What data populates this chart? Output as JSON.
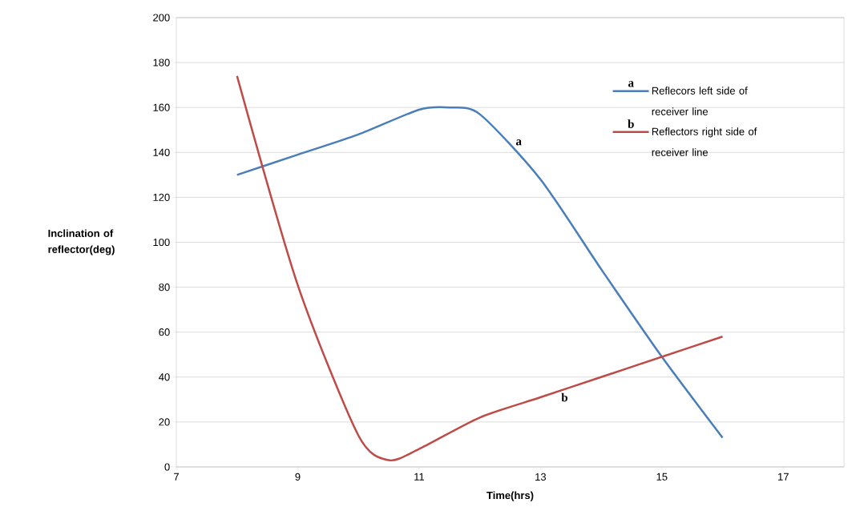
{
  "chart_data": {
    "type": "line",
    "xlabel": "Time(hrs)",
    "ylabel": "Inclination of reflector(deg)",
    "xlim": [
      7,
      18
    ],
    "xticks": [
      7,
      9,
      11,
      13,
      15,
      17
    ],
    "ylim": [
      0,
      200
    ],
    "yticks": [
      0,
      20,
      40,
      60,
      80,
      100,
      120,
      140,
      160,
      180,
      200
    ],
    "grid": "y",
    "legend": "top right",
    "series": [
      {
        "name": "Reflecors left side of receiver line",
        "color": "#4a7ebb",
        "x": [
          8,
          9,
          10,
          11,
          11.5,
          12,
          13,
          14,
          15,
          16
        ],
        "values": [
          130,
          139,
          148,
          159,
          160,
          157,
          128,
          88,
          49,
          13
        ]
      },
      {
        "name": "Reflectors right side of receiver line",
        "color": "#be4b48",
        "x": [
          8,
          9,
          10,
          10.5,
          11,
          12,
          13,
          14,
          15,
          16
        ],
        "values": [
          174,
          81,
          14,
          3,
          8,
          22,
          31,
          40,
          49,
          58
        ]
      }
    ],
    "annotations": [
      "a",
      "b",
      {
        "text": "a",
        "x": 12.55,
        "y": 142
      },
      {
        "text": "b",
        "x": 13.3,
        "y": 34
      }
    ]
  }
}
